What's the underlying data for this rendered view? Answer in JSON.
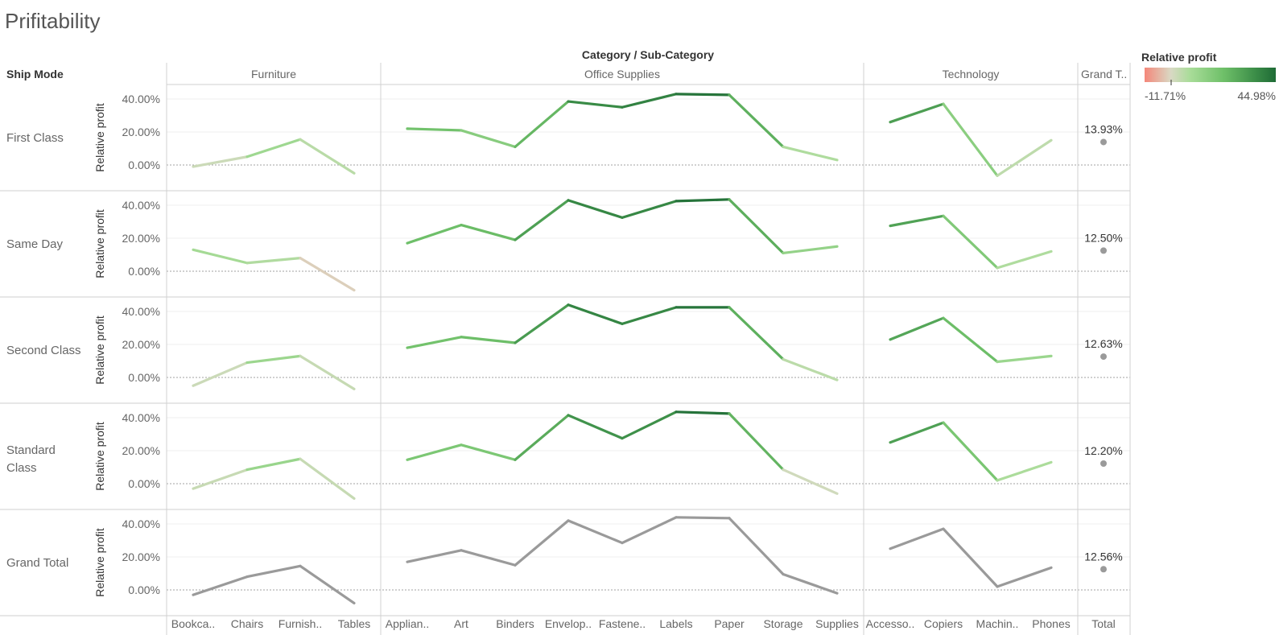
{
  "title": "Prifitability",
  "chart_data": {
    "type": "line",
    "column_header": "Category / Sub-Category",
    "row_header": "Ship Mode",
    "y_axis_label": "Relative profit",
    "y_ticks": [
      "40.00%",
      "20.00%",
      "0.00%"
    ],
    "ylim": [
      -13,
      45
    ],
    "categories": [
      {
        "name": "Furniture",
        "sub_categories": [
          "Bookca..",
          "Chairs",
          "Furnish..",
          "Tables"
        ]
      },
      {
        "name": "Office Supplies",
        "sub_categories": [
          "Applian..",
          "Art",
          "Binders",
          "Envelop..",
          "Fastene..",
          "Labels",
          "Paper",
          "Storage",
          "Supplies"
        ]
      },
      {
        "name": "Technology",
        "sub_categories": [
          "Accesso..",
          "Copiers",
          "Machin..",
          "Phones"
        ]
      }
    ],
    "grand_total_column": {
      "header": "Grand T..",
      "axis_label": "Total"
    },
    "rows": [
      {
        "name": "First Class",
        "values": [
          -1,
          5,
          15.5,
          -5,
          22,
          21,
          11,
          38.5,
          35,
          43,
          42.5,
          11,
          3,
          26,
          37,
          -6.5,
          15
        ],
        "total": 13.93,
        "total_label": "13.93%"
      },
      {
        "name": "Same Day",
        "values": [
          13,
          5,
          8,
          -11.5,
          17,
          28,
          19,
          43,
          32.5,
          42.5,
          43.5,
          11,
          15,
          27.5,
          33.5,
          2,
          12
        ],
        "total": 12.5,
        "total_label": "12.50%"
      },
      {
        "name": "Second Class",
        "values": [
          -5,
          9,
          13,
          -7,
          18,
          24.5,
          21,
          44,
          32.5,
          42.5,
          42.5,
          11,
          -1.5,
          23,
          36,
          9.5,
          13
        ],
        "total": 12.63,
        "total_label": "12.63%"
      },
      {
        "name": "Standard Class",
        "values": [
          -3,
          8.5,
          15,
          -9,
          14.5,
          23.5,
          14.5,
          41.5,
          27.5,
          43.5,
          42.5,
          8.5,
          -6,
          25,
          37,
          2,
          13
        ],
        "total": 12.2,
        "total_label": "12.20%"
      },
      {
        "name": "Grand Total",
        "values": [
          -3,
          8,
          14.5,
          -8,
          17,
          24,
          15,
          42,
          28.5,
          44,
          43.5,
          9.5,
          -2,
          25,
          37,
          2,
          13.5
        ],
        "total": 12.56,
        "total_label": "12.56%",
        "color": "#9a9a9a"
      }
    ],
    "legend": {
      "title": "Relative profit",
      "min_label": "-11.71%",
      "max_label": "44.98%",
      "min": -11.71,
      "max": 44.98,
      "palette": [
        "#f4877a",
        "#d9d9c4",
        "#a8dc98",
        "#6fc069",
        "#3a8c47",
        "#1f6b36"
      ],
      "position": "top-right"
    }
  }
}
